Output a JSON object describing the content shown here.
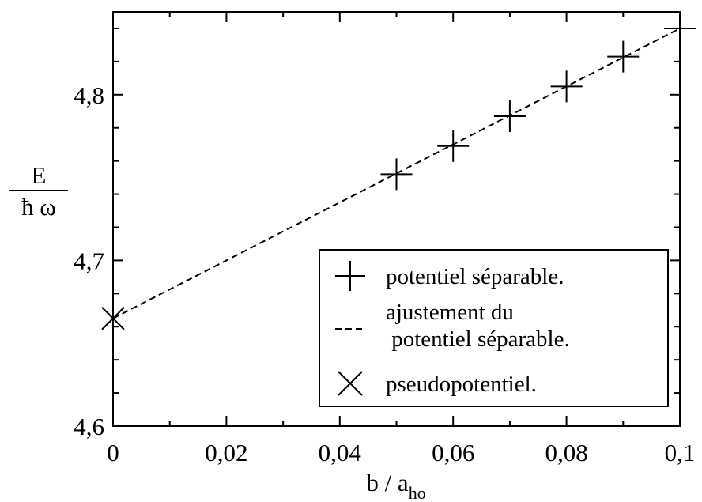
{
  "chart_data": {
    "type": "scatter",
    "title": "",
    "xlabel": {
      "base": "b / a",
      "sub": "ho"
    },
    "ylabel": {
      "numerator": "E",
      "denominator": "ħ ω"
    },
    "xlim": [
      0,
      0.1
    ],
    "ylim": [
      4.6,
      4.85
    ],
    "grid": false,
    "legend_position": "bottom-right",
    "x_ticks": [
      {
        "value": 0,
        "label": "0"
      },
      {
        "value": 0.02,
        "label": "0,02"
      },
      {
        "value": 0.04,
        "label": "0,04"
      },
      {
        "value": 0.06,
        "label": "0,06"
      },
      {
        "value": 0.08,
        "label": "0,08"
      },
      {
        "value": 0.1,
        "label": "0,1"
      }
    ],
    "y_ticks": [
      {
        "value": 4.6,
        "label": "4,6"
      },
      {
        "value": 4.7,
        "label": "4,7"
      },
      {
        "value": 4.8,
        "label": "4,8"
      }
    ],
    "series": [
      {
        "name": "potentiel séparable.",
        "marker": "plus",
        "line": "none",
        "x": [
          0.05,
          0.06,
          0.07,
          0.08,
          0.09,
          0.1
        ],
        "y": [
          4.752,
          4.769,
          4.787,
          4.805,
          4.823,
          4.84
        ]
      },
      {
        "name": "ajustement du\n potentiel séparable.",
        "marker": "none",
        "line": "dashed",
        "x": [
          0,
          0.1
        ],
        "y": [
          4.665,
          4.84
        ]
      },
      {
        "name": "pseudopotentiel.",
        "marker": "cross",
        "line": "none",
        "x": [
          0
        ],
        "y": [
          4.665
        ]
      }
    ]
  }
}
